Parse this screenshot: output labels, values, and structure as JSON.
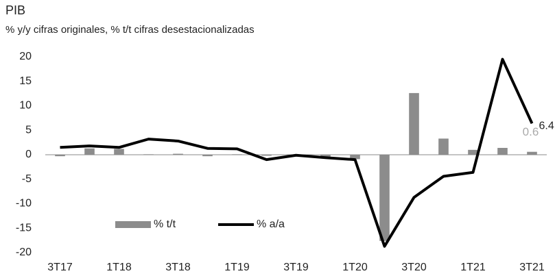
{
  "chart_data": {
    "type": "bar",
    "title": "PIB",
    "subtitle": "% y/y cifras originales, % t/t cifras desestacionalizadas",
    "categories": [
      "3T17",
      null,
      "1T18",
      null,
      "3T18",
      null,
      "1T19",
      null,
      "3T19",
      null,
      "1T20",
      null,
      "3T20",
      null,
      "1T21",
      null,
      "3T21"
    ],
    "series": [
      {
        "name": "% t/t",
        "type": "bar",
        "color": "#8c8c8c",
        "values": [
          -0.3,
          1.3,
          1.2,
          0.1,
          0.2,
          -0.3,
          0.1,
          -0.2,
          -0.1,
          -0.4,
          -0.9,
          -17.6,
          12.6,
          3.3,
          1.0,
          1.4,
          0.6
        ]
      },
      {
        "name": "% a/a",
        "type": "line",
        "color": "#000000",
        "values": [
          1.5,
          1.8,
          1.5,
          3.2,
          2.8,
          1.3,
          1.2,
          -1.0,
          -0.1,
          -0.6,
          -1.0,
          -18.7,
          -8.7,
          -4.4,
          -3.6,
          19.5,
          6.4
        ]
      }
    ],
    "ylim": [
      -20,
      20
    ],
    "yticks": [
      -20,
      -15,
      -10,
      -5,
      0,
      5,
      10,
      15,
      20
    ],
    "grid": false,
    "legend": "lower left"
  }
}
